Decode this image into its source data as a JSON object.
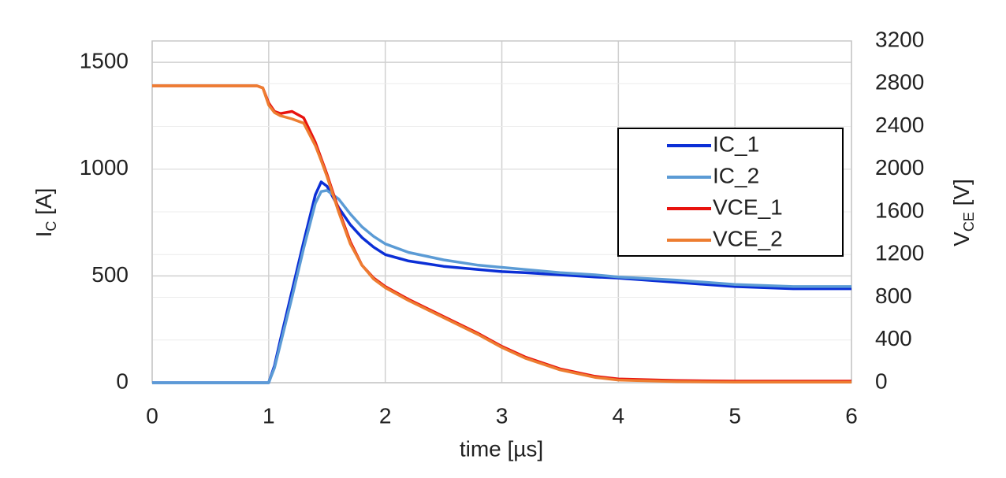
{
  "chart_data": {
    "type": "line",
    "xlabel": "time [µs]",
    "ylabel": {
      "text": "I",
      "subscript": "C",
      "unit": " [A]"
    },
    "y2label": {
      "text": "V",
      "subscript": "CE",
      "unit": " [V]"
    },
    "xlim": [
      0,
      6
    ],
    "xticks": [
      0,
      1,
      2,
      3,
      4,
      5,
      6
    ],
    "ylim": [
      0,
      1600
    ],
    "yticks": [
      0,
      500,
      1000,
      1500
    ],
    "y2lim": [
      0,
      3200
    ],
    "y2ticks": [
      0,
      400,
      800,
      1200,
      1600,
      2000,
      2400,
      2800,
      3200
    ],
    "grid": true,
    "legend": "upper right",
    "x": [
      0,
      0.5,
      0.9,
      0.95,
      1.0,
      1.05,
      1.1,
      1.2,
      1.3,
      1.4,
      1.45,
      1.5,
      1.6,
      1.7,
      1.8,
      1.9,
      2.0,
      2.2,
      2.5,
      2.8,
      3.0,
      3.2,
      3.5,
      3.8,
      4.0,
      4.5,
      5.0,
      5.5,
      6.0
    ],
    "series": [
      {
        "name": "IC_1",
        "color": "#0b2fd6",
        "values": [
          0,
          0,
          0,
          0,
          0,
          80,
          200,
          430,
          660,
          880,
          940,
          920,
          820,
          740,
          680,
          635,
          600,
          570,
          545,
          530,
          520,
          515,
          505,
          495,
          490,
          470,
          450,
          440,
          440
        ]
      },
      {
        "name": "IC_2",
        "color": "#5b9bd5",
        "values": [
          0,
          0,
          0,
          0,
          0,
          70,
          180,
          400,
          630,
          840,
          895,
          900,
          860,
          790,
          730,
          685,
          650,
          610,
          575,
          550,
          540,
          530,
          515,
          505,
          495,
          480,
          460,
          450,
          450
        ]
      },
      {
        "name": "VCE_1",
        "color": "#e8130f",
        "axis": "y2",
        "values": [
          2780,
          2780,
          2780,
          2760,
          2620,
          2540,
          2520,
          2540,
          2480,
          2250,
          2100,
          1950,
          1620,
          1320,
          1100,
          980,
          900,
          780,
          620,
          460,
          340,
          240,
          130,
          60,
          35,
          20,
          15,
          15,
          15
        ]
      },
      {
        "name": "VCE_2",
        "color": "#ed7d31",
        "axis": "y2",
        "values": [
          2780,
          2780,
          2780,
          2760,
          2600,
          2530,
          2500,
          2470,
          2430,
          2220,
          2080,
          1930,
          1600,
          1300,
          1100,
          970,
          890,
          770,
          610,
          450,
          330,
          230,
          120,
          50,
          25,
          10,
          5,
          5,
          5
        ]
      }
    ]
  }
}
